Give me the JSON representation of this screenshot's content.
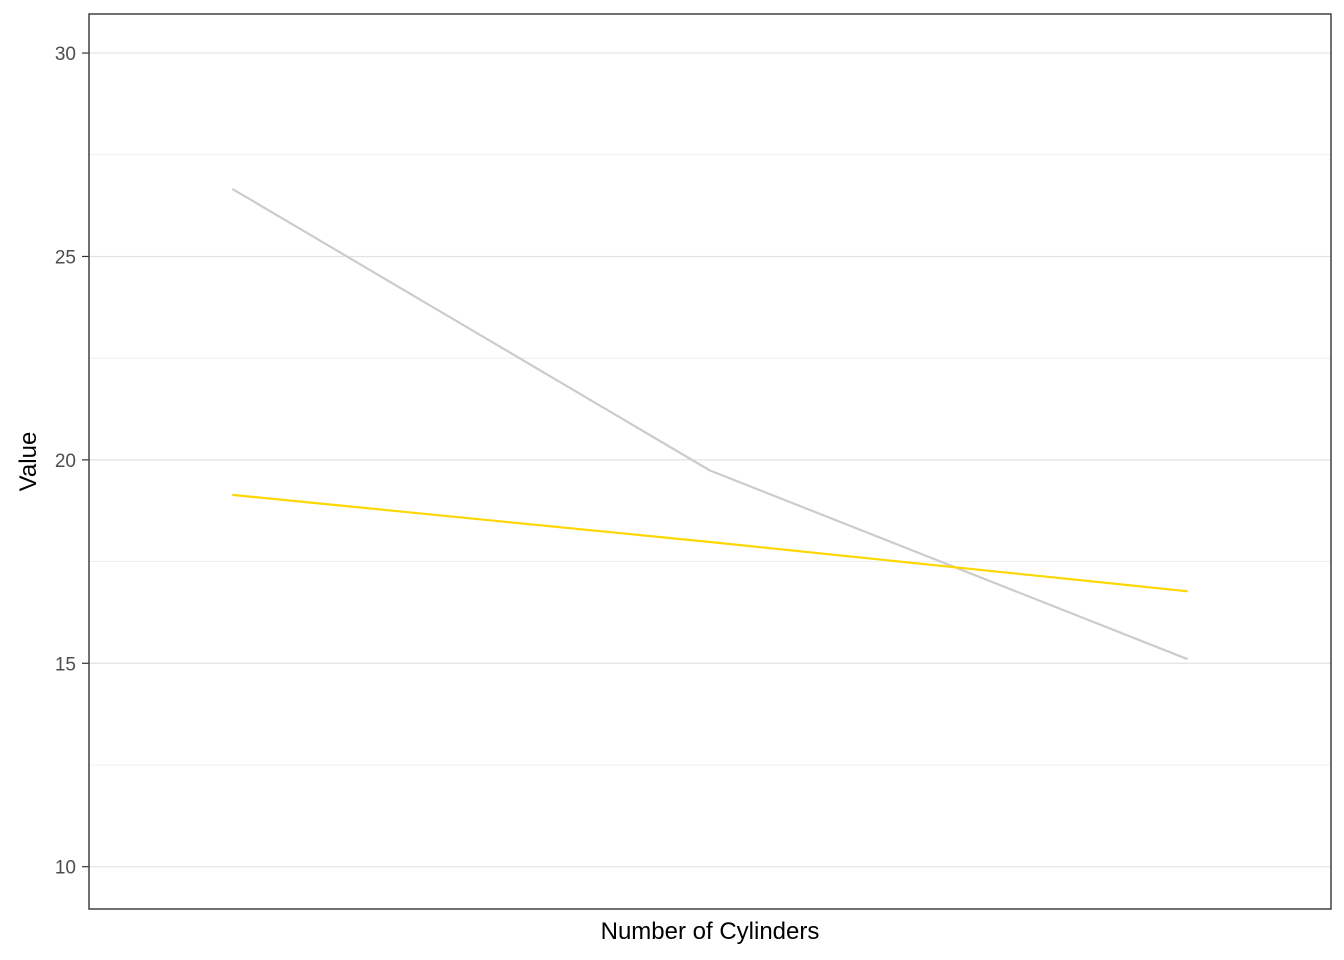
{
  "chart_data": {
    "type": "line",
    "title": "",
    "xlabel": "Number of Cylinders",
    "ylabel": "Value",
    "x": [
      4,
      6,
      8
    ],
    "ylim": [
      8.96,
      30.96
    ],
    "yticks": [
      10,
      15,
      20,
      25,
      30
    ],
    "yminor": [
      12.5,
      17.5,
      22.5,
      27.5
    ],
    "x_tick_labels_shown": false,
    "grid": true,
    "legend": "none",
    "series": [
      {
        "color": "#cccccc",
        "values": [
          26.66,
          19.74,
          15.1
        ]
      },
      {
        "color": "#ffd700",
        "values": [
          19.14,
          17.98,
          16.77
        ]
      }
    ]
  }
}
